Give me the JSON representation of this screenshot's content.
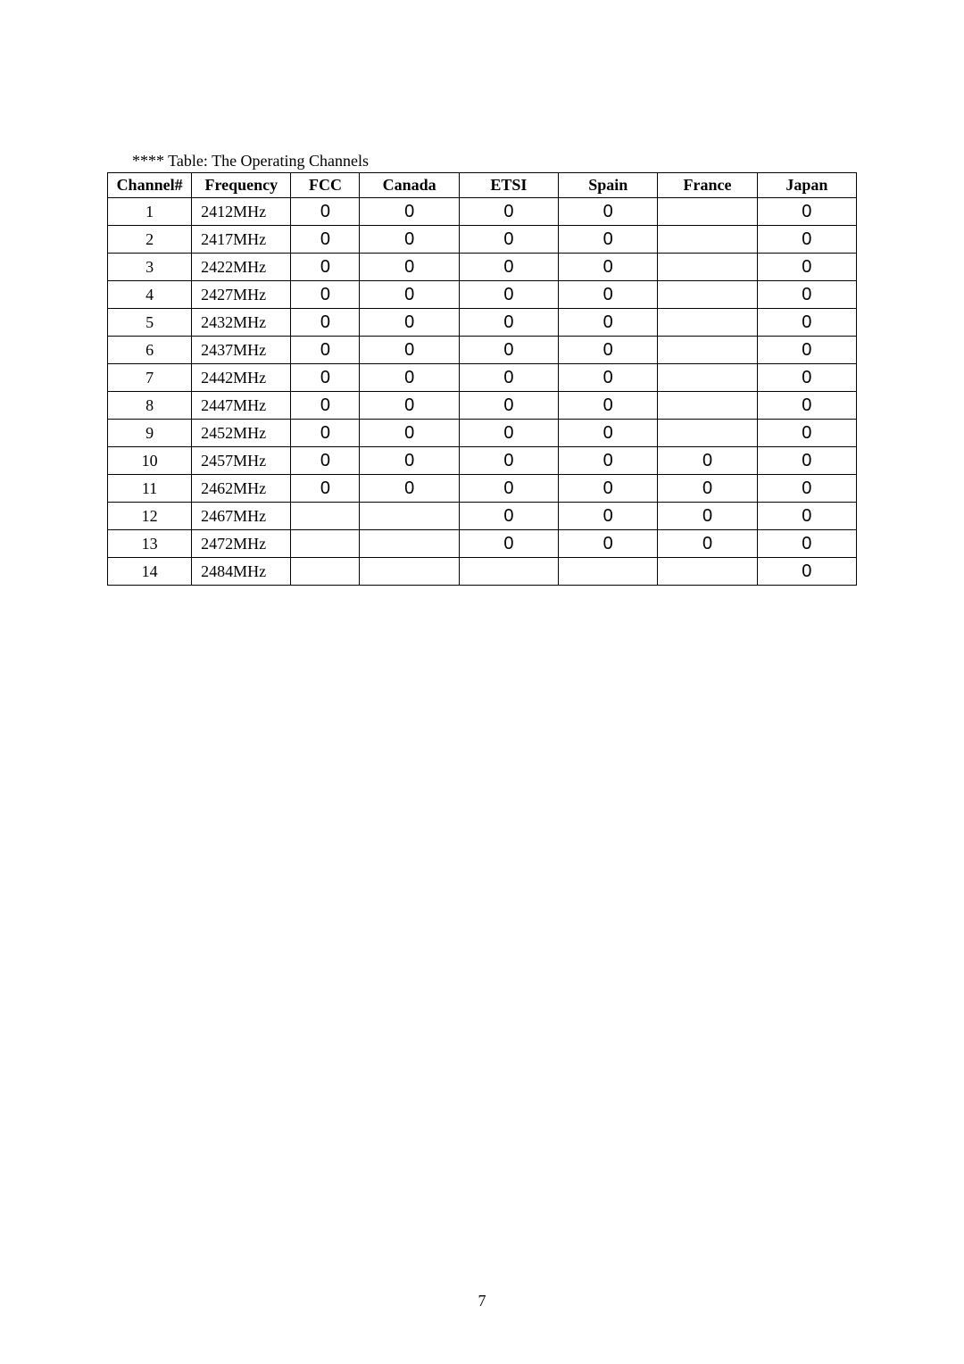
{
  "caption": "**** Table: The Operating Channels",
  "page_number": "7",
  "mark_glyph": "0",
  "table": {
    "columns": [
      "Channel#",
      "Frequency",
      "FCC",
      "Canada",
      "ETSI",
      "Spain",
      "France",
      "Japan"
    ],
    "rows": [
      {
        "ch": "1",
        "freq": "2412MHz",
        "fcc": true,
        "canada": true,
        "etsi": true,
        "spain": true,
        "france": false,
        "japan": true
      },
      {
        "ch": "2",
        "freq": "2417MHz",
        "fcc": true,
        "canada": true,
        "etsi": true,
        "spain": true,
        "france": false,
        "japan": true
      },
      {
        "ch": "3",
        "freq": "2422MHz",
        "fcc": true,
        "canada": true,
        "etsi": true,
        "spain": true,
        "france": false,
        "japan": true
      },
      {
        "ch": "4",
        "freq": "2427MHz",
        "fcc": true,
        "canada": true,
        "etsi": true,
        "spain": true,
        "france": false,
        "japan": true
      },
      {
        "ch": "5",
        "freq": "2432MHz",
        "fcc": true,
        "canada": true,
        "etsi": true,
        "spain": true,
        "france": false,
        "japan": true
      },
      {
        "ch": "6",
        "freq": "2437MHz",
        "fcc": true,
        "canada": true,
        "etsi": true,
        "spain": true,
        "france": false,
        "japan": true
      },
      {
        "ch": "7",
        "freq": "2442MHz",
        "fcc": true,
        "canada": true,
        "etsi": true,
        "spain": true,
        "france": false,
        "japan": true
      },
      {
        "ch": "8",
        "freq": "2447MHz",
        "fcc": true,
        "canada": true,
        "etsi": true,
        "spain": true,
        "france": false,
        "japan": true
      },
      {
        "ch": "9",
        "freq": "2452MHz",
        "fcc": true,
        "canada": true,
        "etsi": true,
        "spain": true,
        "france": false,
        "japan": true
      },
      {
        "ch": "10",
        "freq": "2457MHz",
        "fcc": true,
        "canada": true,
        "etsi": true,
        "spain": true,
        "france": true,
        "japan": true
      },
      {
        "ch": "11",
        "freq": "2462MHz",
        "fcc": true,
        "canada": true,
        "etsi": true,
        "spain": true,
        "france": true,
        "japan": true
      },
      {
        "ch": "12",
        "freq": "2467MHz",
        "fcc": false,
        "canada": false,
        "etsi": true,
        "spain": true,
        "france": true,
        "japan": true
      },
      {
        "ch": "13",
        "freq": "2472MHz",
        "fcc": false,
        "canada": false,
        "etsi": true,
        "spain": true,
        "france": true,
        "japan": true
      },
      {
        "ch": "14",
        "freq": "2484MHz",
        "fcc": false,
        "canada": false,
        "etsi": false,
        "spain": false,
        "france": false,
        "japan": true
      }
    ]
  }
}
